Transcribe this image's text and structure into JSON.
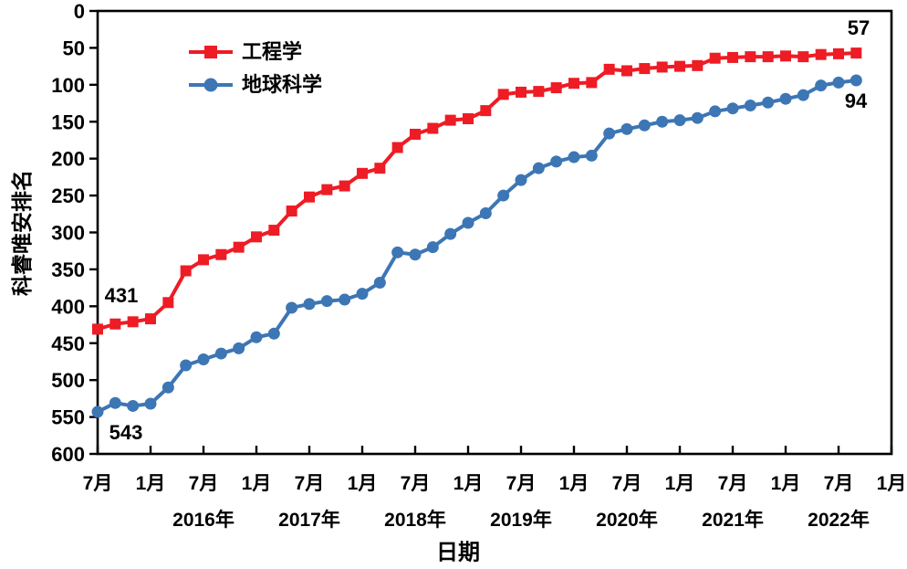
{
  "chart_data": {
    "type": "line",
    "title": "",
    "xlabel": "日期",
    "ylabel": "科睿唯安排名",
    "grid": false,
    "legend_position": "top-left-inside",
    "y_axis": {
      "min": 0,
      "max": 600,
      "step": 50,
      "direction": "0-at-top (smaller rank is better, plotted higher)",
      "tick_labels": [
        "0",
        "50",
        "100",
        "150",
        "200",
        "250",
        "300",
        "350",
        "400",
        "450",
        "500",
        "550",
        "600"
      ]
    },
    "x_axis": {
      "tick_labels": [
        "7月",
        "1月",
        "7月",
        "1月",
        "7月",
        "1月",
        "7月",
        "1月",
        "7月",
        "1月",
        "7月",
        "1月",
        "7月",
        "1月",
        "7月",
        "1月"
      ],
      "year_labels": [
        "2016年",
        "2017年",
        "2018年",
        "2019年",
        "2020年",
        "2021年",
        "2022年"
      ],
      "range_months": [
        "2015-07",
        "2023-01"
      ]
    },
    "x_dates": [
      "2015-07",
      "2015-09",
      "2015-11",
      "2016-01",
      "2016-03",
      "2016-05",
      "2016-07",
      "2016-09",
      "2016-11",
      "2017-01",
      "2017-03",
      "2017-05",
      "2017-07",
      "2017-09",
      "2017-11",
      "2018-01",
      "2018-03",
      "2018-05",
      "2018-07",
      "2018-09",
      "2018-11",
      "2019-01",
      "2019-03",
      "2019-05",
      "2019-07",
      "2019-09",
      "2019-11",
      "2020-01",
      "2020-03",
      "2020-05",
      "2020-07",
      "2020-09",
      "2020-11",
      "2021-01",
      "2021-03",
      "2021-05",
      "2021-07",
      "2021-09",
      "2021-11",
      "2022-01",
      "2022-03",
      "2022-05",
      "2022-07",
      "2022-09"
    ],
    "series": [
      {
        "name": "工程学",
        "color": "#ee1c25",
        "marker": "square",
        "values": [
          431,
          424,
          421,
          417,
          395,
          352,
          337,
          330,
          320,
          306,
          297,
          271,
          252,
          242,
          237,
          220,
          213,
          185,
          167,
          159,
          148,
          146,
          135,
          113,
          110,
          109,
          104,
          98,
          97,
          79,
          81,
          78,
          76,
          75,
          74,
          64,
          63,
          62,
          62,
          61,
          62,
          59,
          58,
          57
        ]
      },
      {
        "name": "地球科学",
        "color": "#3d76b4",
        "marker": "circle",
        "values": [
          543,
          531,
          535,
          532,
          510,
          480,
          472,
          464,
          457,
          442,
          437,
          402,
          397,
          393,
          391,
          383,
          368,
          327,
          330,
          320,
          302,
          287,
          274,
          250,
          229,
          213,
          204,
          198,
          196,
          166,
          160,
          155,
          150,
          148,
          145,
          136,
          132,
          128,
          124,
          119,
          114,
          101,
          97,
          94
        ]
      }
    ],
    "annotations": [
      {
        "text": "431",
        "series": "工程学",
        "position": "first-point"
      },
      {
        "text": "57",
        "series": "工程学",
        "position": "last-point"
      },
      {
        "text": "543",
        "series": "地球科学",
        "position": "first-point"
      },
      {
        "text": "94",
        "series": "地球科学",
        "position": "last-point"
      }
    ]
  }
}
